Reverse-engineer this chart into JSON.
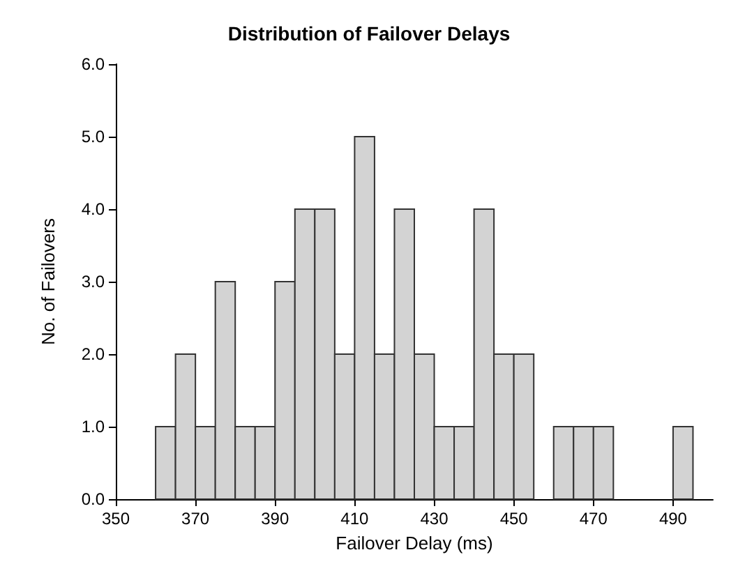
{
  "chart_data": {
    "type": "histogram",
    "title": "Distribution of Failover Delays",
    "xlabel": "Failover Delay (ms)",
    "ylabel": "No. of Failovers",
    "bins": [
      360,
      365,
      370,
      375,
      380,
      385,
      390,
      395,
      400,
      405,
      410,
      415,
      420,
      425,
      430,
      435,
      440,
      445,
      450,
      455,
      460,
      465,
      470,
      475,
      480,
      485,
      490,
      495
    ],
    "values": [
      1,
      2,
      1,
      3,
      1,
      1,
      3,
      4,
      4,
      2,
      5,
      2,
      4,
      2,
      1,
      1,
      4,
      2,
      2,
      0,
      1,
      1,
      1,
      0,
      0,
      0,
      1
    ],
    "color": "#d3d3d3",
    "xlim": [
      350,
      500
    ],
    "xticks": [
      350,
      370,
      390,
      410,
      430,
      450,
      470,
      490
    ],
    "ylim": [
      0,
      6
    ],
    "yticks": [
      {
        "value": 0,
        "label": "0.0"
      },
      {
        "value": 1,
        "label": "1.0"
      },
      {
        "value": 2,
        "label": "2.0"
      },
      {
        "value": 3,
        "label": "3.0"
      },
      {
        "value": 4,
        "label": "4.0"
      },
      {
        "value": 5,
        "label": "5.0"
      },
      {
        "value": 6,
        "label": "6.0"
      }
    ],
    "grid": false
  }
}
